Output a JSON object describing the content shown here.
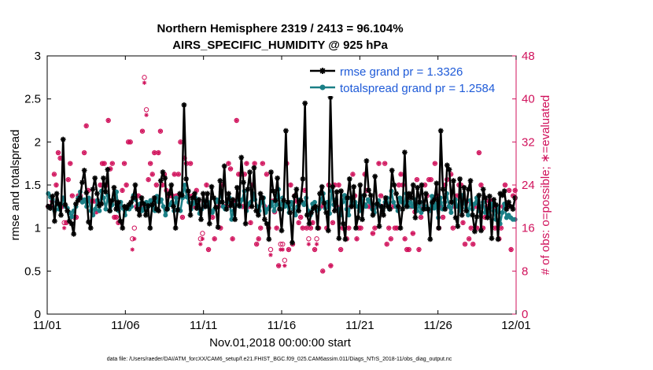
{
  "chart_data": {
    "type": "line",
    "title": "Northern Hemisphere 2319 / 2413 = 96.104%",
    "subtitle": "AIRS_SPECIFIC_HUMIDITY @ 925 hPa",
    "xlabel": "Nov.01,2018 00:00:00 start",
    "ylabel": "rmse and totalspread",
    "ylabel_right": "# of obs: o=possible; ∗=evaluated",
    "footnote": "data file: /Users/raeder/DAI/ATM_forcXX/CAM6_setup/f.e21.FHIST_BGC.f09_025.CAM6assim.011/Diags_NTrS_2018-11/obs_diag_output.nc",
    "xticks": [
      "11/01",
      "11/06",
      "11/11",
      "11/16",
      "11/21",
      "11/26",
      "12/01"
    ],
    "xlim_days": [
      0,
      30
    ],
    "ylim": [
      0,
      3
    ],
    "yticks": [
      "0",
      "0.5",
      "1",
      "1.5",
      "2",
      "2.5",
      "3"
    ],
    "ylim_right": [
      0,
      48
    ],
    "yticks_right": [
      "0",
      "8",
      "16",
      "24",
      "32",
      "40",
      "48"
    ],
    "colors": {
      "rmse": "#000000",
      "spread": "#1a7f86",
      "obs": "#d0115b",
      "legend_text": "#1f5bd8"
    },
    "legend": [
      {
        "name": "rmse grand pr = 1.3326",
        "color": "#000000",
        "marker": "star"
      },
      {
        "name": "totalspread grand pr = 1.2584",
        "color": "#1a7f86",
        "marker": "circle"
      }
    ],
    "series": [
      {
        "name": "rmse",
        "values": [
          1.25,
          1.23,
          1.37,
          1.08,
          1.4,
          1.28,
          1.15,
          2.03,
          1.27,
          1.2,
          1.08,
          1.05,
          0.93,
          1.28,
          1.32,
          1.35,
          1.53,
          1.67,
          1.41,
          1.07,
          1.0,
          1.45,
          1.58,
          1.4,
          1.26,
          1.28,
          1.58,
          1.42,
          1.68,
          1.2,
          1.32,
          1.47,
          1.22,
          1.3,
          1.08,
          1.0,
          1.25,
          1.23,
          1.27,
          1.3,
          1.35,
          1.5,
          1.22,
          1.15,
          1.35,
          1.28,
          1.15,
          1.26,
          1.0,
          1.27,
          1.35,
          1.22,
          1.2,
          1.55,
          1.65,
          1.58,
          1.22,
          1.4,
          1.5,
          1.25,
          1.0,
          1.21,
          1.4,
          1.38,
          2.43,
          1.57,
          1.43,
          1.15,
          1.35,
          1.4,
          1.23,
          1.33,
          1.1,
          1.4,
          1.25,
          1.4,
          1.05,
          1.48,
          1.35,
          1.24,
          1.01,
          1.55,
          1.3,
          1.72,
          1.22,
          1.4,
          1.26,
          1.33,
          1.1,
          1.47,
          1.26,
          1.82,
          1.53,
          1.05,
          1.45,
          1.65,
          1.25,
          1.7,
          1.2,
          1.15,
          1.4,
          1.35,
          1.1,
          1.05,
          0.87,
          1.65,
          1.43,
          1.32,
          1.58,
          1.22,
          0.97,
          1.32,
          2.13,
          1.3,
          1.18,
          0.83,
          1.37,
          1.45,
          1.2,
          1.32,
          1.57,
          2.45,
          1.15,
          1.05,
          1.18,
          1.23,
          1.25,
          1.0,
          1.4,
          1.48,
          1.29,
          1.18,
          0.97,
          2.52,
          1.48,
          1.2,
          1.42,
          0.88,
          1.43,
          1.05,
          0.87,
          1.35,
          1.57,
          1.25,
          1.48,
          1.0,
          1.12,
          1.5,
          1.1,
          1.38,
          1.78,
          1.44,
          1.38,
          1.15,
          1.6,
          1.28,
          1.02,
          1.25,
          1.15,
          1.35,
          1.25,
          1.22,
          1.67,
          1.5,
          1.4,
          1.25,
          1.0,
          1.22,
          1.88,
          1.25,
          1.4,
          1.35,
          1.5,
          1.12,
          1.47,
          1.3,
          1.5,
          1.22,
          1.4,
          1.22,
          0.87,
          1.3,
          1.33,
          1.52,
          1.0,
          2.13,
          1.45,
          1.22,
          1.73,
          1.68,
          1.3,
          1.55,
          1.12,
          1.02,
          1.57,
          1.15,
          1.47,
          1.2,
          1.45,
          1.55,
          1.15,
          0.96,
          1.13,
          1.38,
          0.97,
          1.45,
          1.35,
          1.12,
          1.37,
          0.88,
          1.33,
          1.27,
          0.87,
          1.4,
          1.38,
          1.43,
          1.22,
          1.3,
          1.25,
          1.22,
          1.35
        ]
      },
      {
        "name": "totalspread",
        "values": [
          1.4,
          1.36,
          1.33,
          1.2,
          1.3,
          1.22,
          1.28,
          1.35,
          1.25,
          1.23,
          1.18,
          1.13,
          1.2,
          1.25,
          1.35,
          1.42,
          1.3,
          1.33,
          1.25,
          1.35,
          1.2,
          1.15,
          1.22,
          1.32,
          1.2,
          1.43,
          1.35,
          1.22,
          1.38,
          1.2,
          1.27,
          1.4,
          1.42,
          1.2,
          1.3,
          1.23,
          1.15,
          1.25,
          1.22,
          1.25,
          1.38,
          1.33,
          1.27,
          1.28,
          1.2,
          1.23,
          1.3,
          1.25,
          1.32,
          1.27,
          1.2,
          1.37,
          1.3,
          1.33,
          1.25,
          1.15,
          1.22,
          1.27,
          1.3,
          1.2,
          1.35,
          1.22,
          1.2,
          1.35,
          1.5,
          1.36,
          1.3,
          1.22,
          1.28,
          1.35,
          1.27,
          1.17,
          1.22,
          1.32,
          1.25,
          1.3,
          1.2,
          1.18,
          1.22,
          1.33,
          1.3,
          1.42,
          1.25,
          1.22,
          1.3,
          1.35,
          1.1,
          1.2,
          1.27,
          1.37,
          1.25,
          1.33,
          1.43,
          1.2,
          1.28,
          1.3,
          1.4,
          1.33,
          1.25,
          1.2,
          1.3,
          1.35,
          1.18,
          1.22,
          1.25,
          1.3,
          1.2,
          1.27,
          1.45,
          1.22,
          1.35,
          1.25,
          1.28,
          1.18,
          1.3,
          1.22,
          1.15,
          1.25,
          1.33,
          1.3,
          1.27,
          1.35,
          1.2,
          1.15,
          1.28,
          1.3,
          1.2,
          1.22,
          1.33,
          1.4,
          1.23,
          1.3,
          1.17,
          1.43,
          1.27,
          1.33,
          1.22,
          1.15,
          1.3,
          1.38,
          1.22,
          1.15,
          1.35,
          1.28,
          1.3,
          1.25,
          1.2,
          1.37,
          1.28,
          1.25,
          1.33,
          1.3,
          1.22,
          1.18,
          1.27,
          1.32,
          1.25,
          1.2,
          1.3,
          1.35,
          1.22,
          1.43,
          1.3,
          1.25,
          1.2,
          1.35,
          1.3,
          1.27,
          1.4,
          1.25,
          1.3,
          1.25,
          1.33,
          1.2,
          1.27,
          1.18,
          1.3,
          1.25,
          1.22,
          1.2,
          1.37,
          1.23,
          1.28,
          1.12,
          1.35,
          1.22,
          1.3,
          1.4,
          1.25,
          1.18,
          1.3,
          1.33,
          1.25,
          1.2,
          1.38,
          1.3,
          1.23,
          1.15,
          1.32,
          1.22,
          1.28,
          1.35,
          1.2,
          1.25,
          1.3,
          1.18,
          1.22,
          1.15,
          1.28,
          1.2,
          1.1,
          1.25,
          1.05,
          1.18,
          1.28,
          1.12,
          1.15,
          1.12,
          1.1,
          1.1
        ]
      },
      {
        "name": "obs_possible",
        "values": [
          20,
          20,
          21,
          26,
          24,
          30,
          29,
          20,
          17,
          17,
          25,
          28,
          22,
          18,
          18,
          22,
          22,
          21,
          30,
          35,
          23,
          21,
          21,
          21,
          19,
          21,
          24,
          28,
          28,
          24,
          36,
          27,
          28,
          18,
          18,
          17,
          20,
          23,
          28,
          24,
          32,
          32,
          14,
          16,
          20,
          22,
          20,
          34,
          44,
          38,
          25,
          28,
          26,
          30,
          24,
          30,
          34,
          24,
          26,
          23,
          22,
          22,
          22,
          26,
          22,
          26,
          32,
          18,
          29,
          28,
          22,
          28,
          22,
          20,
          23,
          21,
          14,
          15,
          20,
          24,
          12,
          19,
          18,
          14,
          21,
          20,
          16,
          24,
          20,
          20,
          28,
          27,
          14,
          21,
          36,
          26,
          26,
          20,
          26,
          28,
          20,
          17,
          24,
          28,
          13,
          14,
          16,
          28,
          20,
          26,
          16,
          12,
          21,
          19,
          16,
          9,
          13,
          13,
          10,
          28,
          12,
          24,
          13,
          22,
          21,
          17,
          18,
          16,
          23,
          16,
          14,
          16,
          17,
          12,
          14,
          16,
          20,
          8,
          20,
          16,
          24,
          9,
          17,
          24,
          20,
          24,
          12,
          16,
          22,
          14,
          16,
          20,
          26,
          22,
          14,
          16,
          16,
          20,
          26,
          23,
          20,
          20,
          15,
          16,
          20,
          28,
          22,
          20,
          28,
          13,
          16,
          14,
          20,
          16,
          16,
          24,
          26,
          24,
          14,
          12,
          12,
          20,
          15,
          19,
          25,
          12,
          18,
          20,
          24,
          22,
          25,
          25,
          20,
          28,
          22,
          16,
          20,
          18,
          24,
          25,
          20,
          26,
          16,
          20,
          22,
          24,
          24,
          17,
          13,
          21,
          14,
          16,
          13,
          20,
          16,
          30,
          24,
          16,
          18,
          20,
          21,
          21,
          20,
          16,
          20,
          14,
          16,
          20,
          24,
          20,
          23,
          12,
          22,
          23
        ]
      },
      {
        "name": "obs_evaluated",
        "values": [
          20,
          20,
          21,
          26,
          24,
          30,
          29,
          20,
          16,
          17,
          25,
          28,
          22,
          18,
          18,
          22,
          22,
          21,
          30,
          35,
          23,
          21,
          21,
          21,
          19,
          21,
          24,
          28,
          28,
          24,
          36,
          27,
          28,
          18,
          18,
          17,
          20,
          23,
          28,
          24,
          32,
          32,
          12,
          14,
          20,
          22,
          20,
          34,
          43,
          37,
          25,
          28,
          26,
          30,
          24,
          30,
          34,
          24,
          26,
          23,
          22,
          22,
          22,
          26,
          22,
          26,
          32,
          18,
          29,
          28,
          22,
          28,
          22,
          20,
          23,
          21,
          13,
          14,
          20,
          24,
          12,
          19,
          18,
          14,
          21,
          20,
          16,
          24,
          20,
          20,
          28,
          27,
          14,
          21,
          36,
          26,
          26,
          20,
          26,
          28,
          20,
          17,
          24,
          28,
          13,
          14,
          16,
          28,
          20,
          26,
          16,
          11,
          21,
          19,
          16,
          9,
          12,
          12,
          9,
          28,
          12,
          24,
          13,
          22,
          21,
          17,
          18,
          16,
          23,
          16,
          13,
          16,
          17,
          12,
          13,
          16,
          20,
          8,
          20,
          16,
          24,
          9,
          17,
          24,
          20,
          24,
          12,
          16,
          22,
          14,
          16,
          20,
          26,
          22,
          14,
          16,
          16,
          20,
          26,
          23,
          20,
          20,
          15,
          16,
          20,
          28,
          22,
          20,
          28,
          13,
          16,
          14,
          20,
          16,
          16,
          24,
          26,
          24,
          14,
          12,
          12,
          20,
          15,
          19,
          25,
          12,
          18,
          20,
          24,
          22,
          25,
          25,
          20,
          28,
          22,
          16,
          20,
          18,
          24,
          25,
          20,
          26,
          16,
          20,
          22,
          24,
          24,
          17,
          13,
          21,
          14,
          16,
          13,
          20,
          16,
          30,
          24,
          16,
          18,
          20,
          21,
          21,
          20,
          16,
          20,
          14,
          16,
          20,
          24,
          20,
          23,
          12,
          22,
          23
        ]
      }
    ]
  }
}
